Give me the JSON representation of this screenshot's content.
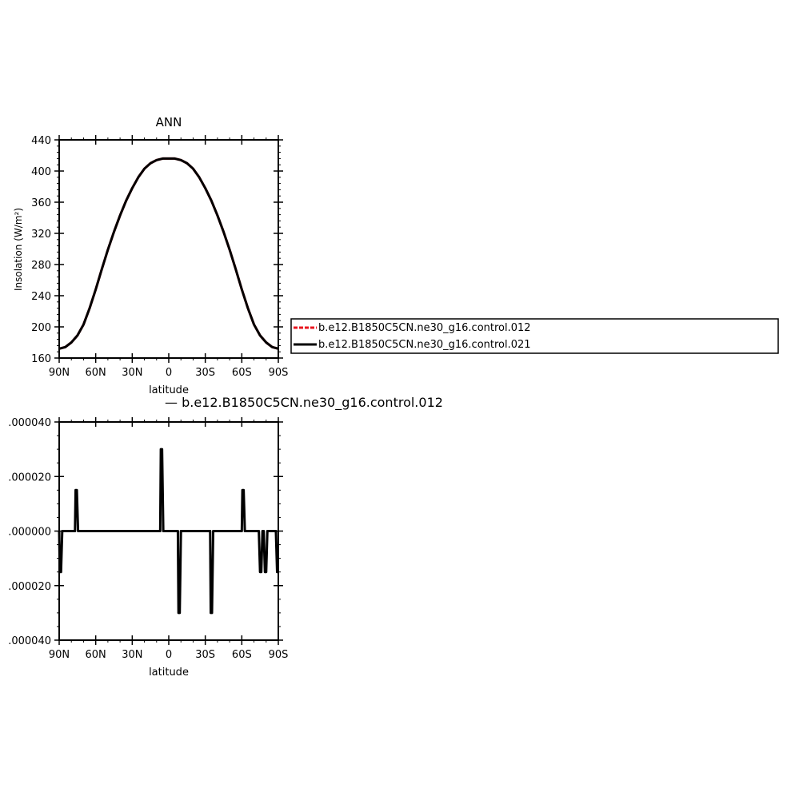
{
  "chart_data": [
    {
      "type": "line",
      "title": "ANN",
      "xlabel": "latitude",
      "ylabel": "Insolation  (W/m²)",
      "xlim": [
        -90,
        90
      ],
      "ylim": [
        160,
        440
      ],
      "xticks": [
        -90,
        -60,
        -30,
        0,
        30,
        60,
        90
      ],
      "xtick_labels": [
        "90N",
        "60N",
        "30N",
        "0",
        "30S",
        "60S",
        "90S"
      ],
      "yticks": [
        160,
        200,
        240,
        280,
        320,
        360,
        400,
        440
      ],
      "ytick_labels": [
        "160",
        "200",
        "240",
        "280",
        "320",
        "360",
        "400",
        "440"
      ],
      "grid": false,
      "legend_position": "right",
      "series": [
        {
          "name": "b.e12.B1850C5CN.ne30_g16.control.012",
          "color": "#e8141e",
          "style": "dashed",
          "x": [
            -90,
            -85,
            -80,
            -75,
            -70,
            -65,
            -60,
            -55,
            -50,
            -45,
            -40,
            -35,
            -30,
            -25,
            -20,
            -15,
            -10,
            -5,
            0,
            5,
            10,
            15,
            20,
            25,
            30,
            35,
            40,
            45,
            50,
            55,
            60,
            65,
            70,
            75,
            80,
            85,
            90
          ],
          "values": [
            172,
            174,
            180,
            189,
            203,
            224,
            248,
            274,
            299,
            322,
            343,
            362,
            378,
            392,
            403,
            410,
            414,
            416,
            416,
            416,
            414,
            410,
            403,
            392,
            378,
            362,
            343,
            322,
            299,
            274,
            248,
            224,
            203,
            189,
            180,
            174,
            172
          ]
        },
        {
          "name": "b.e12.B1850C5CN.ne30_g16.control.021",
          "color": "#000000",
          "style": "solid",
          "x": [
            -90,
            -85,
            -80,
            -75,
            -70,
            -65,
            -60,
            -55,
            -50,
            -45,
            -40,
            -35,
            -30,
            -25,
            -20,
            -15,
            -10,
            -5,
            0,
            5,
            10,
            15,
            20,
            25,
            30,
            35,
            40,
            45,
            50,
            55,
            60,
            65,
            70,
            75,
            80,
            85,
            90
          ],
          "values": [
            172,
            174,
            180,
            189,
            203,
            224,
            248,
            274,
            299,
            322,
            343,
            362,
            378,
            392,
            403,
            410,
            414,
            416,
            416,
            416,
            414,
            410,
            403,
            392,
            378,
            362,
            343,
            322,
            299,
            274,
            248,
            224,
            203,
            189,
            180,
            174,
            172
          ]
        }
      ]
    },
    {
      "type": "line",
      "title": "—  b.e12.B1850C5CN.ne30_g16.control.012",
      "xlabel": "latitude",
      "ylabel": "",
      "xlim": [
        -90,
        90
      ],
      "ylim": [
        -4e-05,
        4e-05
      ],
      "xticks": [
        -90,
        -60,
        -30,
        0,
        30,
        60,
        90
      ],
      "xtick_labels": [
        "90N",
        "60N",
        "30N",
        "0",
        "30S",
        "60S",
        "90S"
      ],
      "yticks": [
        4e-05,
        2e-05,
        0,
        -2e-05,
        -4e-05
      ],
      "ytick_labels": [
        ".000040",
        ".000020",
        ".000000",
        ".000020",
        ".000040"
      ],
      "grid": false,
      "series": [
        {
          "color": "#000000",
          "x": [
            -90,
            -89.5,
            -88.5,
            -87.5,
            -87,
            -77,
            -76.5,
            -75.5,
            -74.5,
            -74,
            -7,
            -6.5,
            -5.5,
            -4.5,
            -4,
            7.5,
            8,
            9,
            10,
            10.5,
            34,
            34.5,
            35.5,
            36.5,
            37,
            60,
            60.5,
            61.5,
            62.5,
            63,
            74,
            75,
            76,
            77,
            78,
            79,
            80,
            81,
            82,
            83,
            88,
            89,
            90
          ],
          "values": [
            0,
            -1.5e-05,
            -1.5e-05,
            0,
            0,
            0,
            1.5e-05,
            1.5e-05,
            0,
            0,
            0,
            3e-05,
            3e-05,
            0,
            0,
            0,
            -3e-05,
            -3e-05,
            0,
            0,
            0,
            -3e-05,
            -3e-05,
            0,
            0,
            0,
            1.5e-05,
            1.5e-05,
            0,
            0,
            0,
            -1.5e-05,
            -1.5e-05,
            0,
            0,
            -1.5e-05,
            -1.5e-05,
            0,
            0,
            0,
            0,
            -1.5e-05,
            -1.5e-05
          ]
        }
      ]
    }
  ]
}
